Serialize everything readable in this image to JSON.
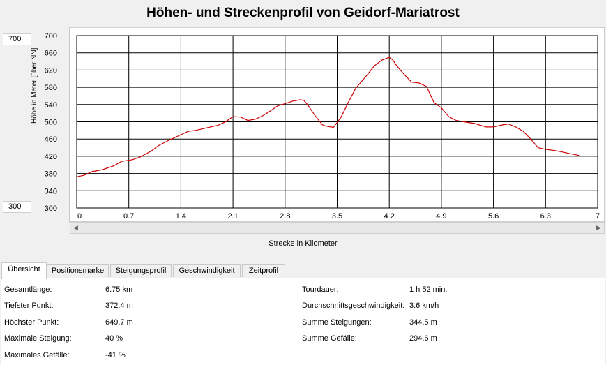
{
  "title": "Höhen- und Streckenprofil von Geidorf-Mariatrost",
  "range_boxes": {
    "max": "700",
    "min": "300"
  },
  "colors": {
    "line": "#cc0000",
    "grid": "#000000",
    "plot_bg": "#ffffff"
  },
  "chart_data": {
    "type": "line",
    "title": "Höhen- und Streckenprofil von Geidorf-Mariatrost",
    "xlabel": "Strecke in Kilometer",
    "ylabel": "Höhe in Meter [über NN]",
    "xlim": [
      0,
      7
    ],
    "ylim": [
      300,
      700
    ],
    "x_ticks": [
      "0",
      "0.7",
      "1.4",
      "2.1",
      "2.8",
      "3.5",
      "4.2",
      "4.9",
      "5.6",
      "6.3",
      "7"
    ],
    "y_ticks": [
      "700",
      "660",
      "620",
      "580",
      "540",
      "500",
      "460",
      "420",
      "380",
      "340",
      "300"
    ],
    "grid": true,
    "series": [
      {
        "x": [
          0,
          0.1,
          0.2,
          0.35,
          0.5,
          0.6,
          0.75,
          0.85,
          1.0,
          1.1,
          1.25,
          1.4,
          1.5,
          1.6,
          1.75,
          1.9,
          2.0,
          2.1,
          2.2,
          2.3,
          2.4,
          2.5,
          2.6,
          2.7,
          2.8,
          2.9,
          3.0,
          3.05,
          3.1,
          3.2,
          3.3,
          3.35,
          3.45,
          3.55,
          3.65,
          3.75,
          3.9,
          4.0,
          4.1,
          4.2,
          4.25,
          4.3,
          4.4,
          4.5,
          4.6,
          4.7,
          4.8,
          4.9,
          5.0,
          5.1,
          5.2,
          5.35,
          5.5,
          5.6,
          5.7,
          5.8,
          5.9,
          6.0,
          6.1,
          6.2,
          6.3,
          6.4,
          6.5,
          6.6,
          6.75
        ],
        "y": [
          372.4,
          376,
          384,
          389,
          398,
          408,
          412,
          418,
          432,
          445,
          458,
          470,
          478,
          480,
          486,
          492,
          500,
          512,
          511,
          503,
          506,
          514,
          525,
          537,
          542,
          548,
          551,
          550,
          540,
          515,
          493,
          490,
          487,
          510,
          545,
          578,
          608,
          630,
          643,
          649.7,
          643,
          630,
          610,
          592,
          590,
          582,
          545,
          532,
          512,
          503,
          500,
          496,
          488,
          488,
          492,
          495,
          488,
          478,
          460,
          440,
          436,
          434,
          431,
          427,
          422
        ]
      }
    ]
  },
  "tabs": [
    "Übersicht",
    "Positionsmarke",
    "Steigungsprofil",
    "Geschwindigkeit",
    "Zeitprofil"
  ],
  "stats_left": [
    {
      "label": "Gesamtlänge:",
      "value": "6.75 km"
    },
    {
      "label": "Tiefster Punkt:",
      "value": "372.4 m"
    },
    {
      "label": "Höchster Punkt:",
      "value": "649.7 m"
    },
    {
      "label": "Maximale Steigung:",
      "value": "40 %"
    },
    {
      "label": "Maximales Gefälle:",
      "value": "-41 %"
    }
  ],
  "stats_right": [
    {
      "label": "Tourdauer:",
      "value": "1 h 52 min."
    },
    {
      "label": "Durchschnittsgeschwindigkeit:",
      "value": "3.6 km/h"
    },
    {
      "label": "Summe Steigungen:",
      "value": "344.5 m"
    },
    {
      "label": "Summe Gefälle:",
      "value": "294.6 m"
    }
  ]
}
